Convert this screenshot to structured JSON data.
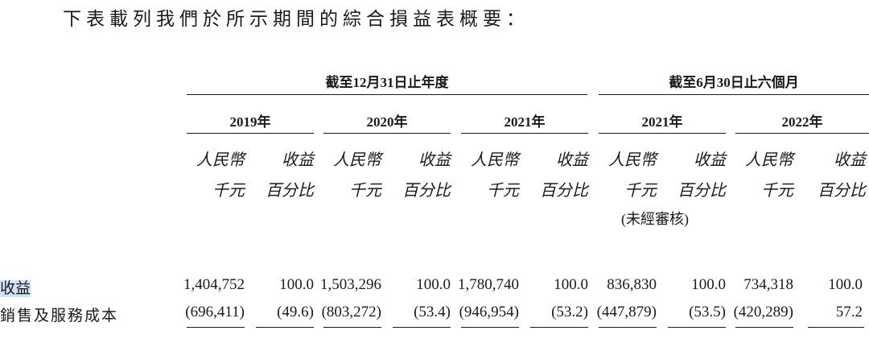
{
  "intro": "下表載列我們於所示期間的綜合損益表概要：",
  "periods": {
    "annual": "截至12月31日止年度",
    "interim": "截至6月30日止六個月"
  },
  "years": [
    "2019年",
    "2020年",
    "2021年",
    "2021年",
    "2022年"
  ],
  "col_headers": {
    "rmb_line1": "人民幣",
    "rmb_line2": "千元",
    "pct_line1": "收益",
    "pct_line2": "百分比"
  },
  "unaudited": "(未經審核)",
  "rows": [
    {
      "label": "收益",
      "values": [
        "1,404,752",
        "100.0",
        "1,503,296",
        "100.0",
        "1,780,740",
        "100.0",
        "836,830",
        "100.0",
        "734,318",
        "100.0"
      ]
    },
    {
      "label": "銷售及服務成本",
      "values": [
        "(696,411)",
        "(49.6)",
        "(803,272)",
        "(53.4)",
        "(946,954)",
        "(53.2)",
        "(447,879)",
        "(53.5)",
        "(420,289)",
        "57.2"
      ]
    }
  ]
}
